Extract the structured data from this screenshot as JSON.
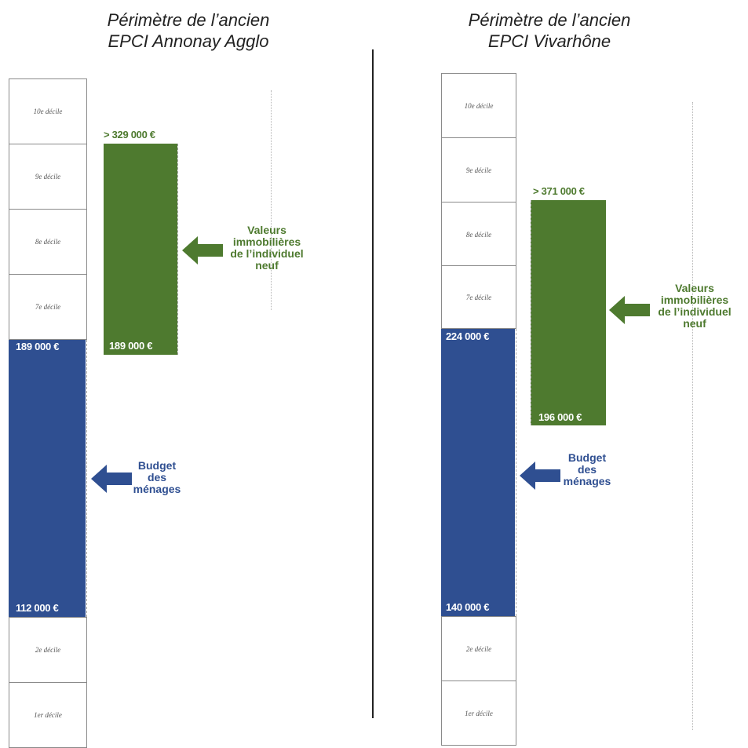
{
  "colors": {
    "budget": "#2f4f91",
    "property": "#4e7a2f",
    "divider": "#222222"
  },
  "left": {
    "title_line1": "Périmètre de l’ancien",
    "title_line2": "EPCI Annonay Agglo",
    "deciles_top": [
      "10e décile",
      "9e décile",
      "8e décile",
      "7e décile"
    ],
    "deciles_bottom": [
      "2e décile",
      "1er décile"
    ],
    "budget_high": "189 000 €",
    "budget_low": "112 000 €",
    "property_high": "> 329 000 €",
    "property_low": "189 000 €",
    "property_label": [
      "Valeurs",
      "immobilières",
      "de l’individuel",
      "neuf"
    ],
    "budget_label": [
      "Budget",
      "des",
      "ménages"
    ]
  },
  "right": {
    "title_line1": "Périmètre de l’ancien",
    "title_line2": "EPCI Vivarhône",
    "deciles_top": [
      "10e décile",
      "9e décile",
      "8e décile",
      "7e décile"
    ],
    "deciles_bottom": [
      "2e décile",
      "1er décile"
    ],
    "budget_high": "224 000 €",
    "budget_low": "140 000 €",
    "property_high": "> 371 000 €",
    "property_low": "196 000 €",
    "property_label": [
      "Valeurs",
      "immobilières",
      "de l’individuel",
      "neuf"
    ],
    "budget_label": [
      "Budget",
      "des",
      "ménages"
    ]
  }
}
